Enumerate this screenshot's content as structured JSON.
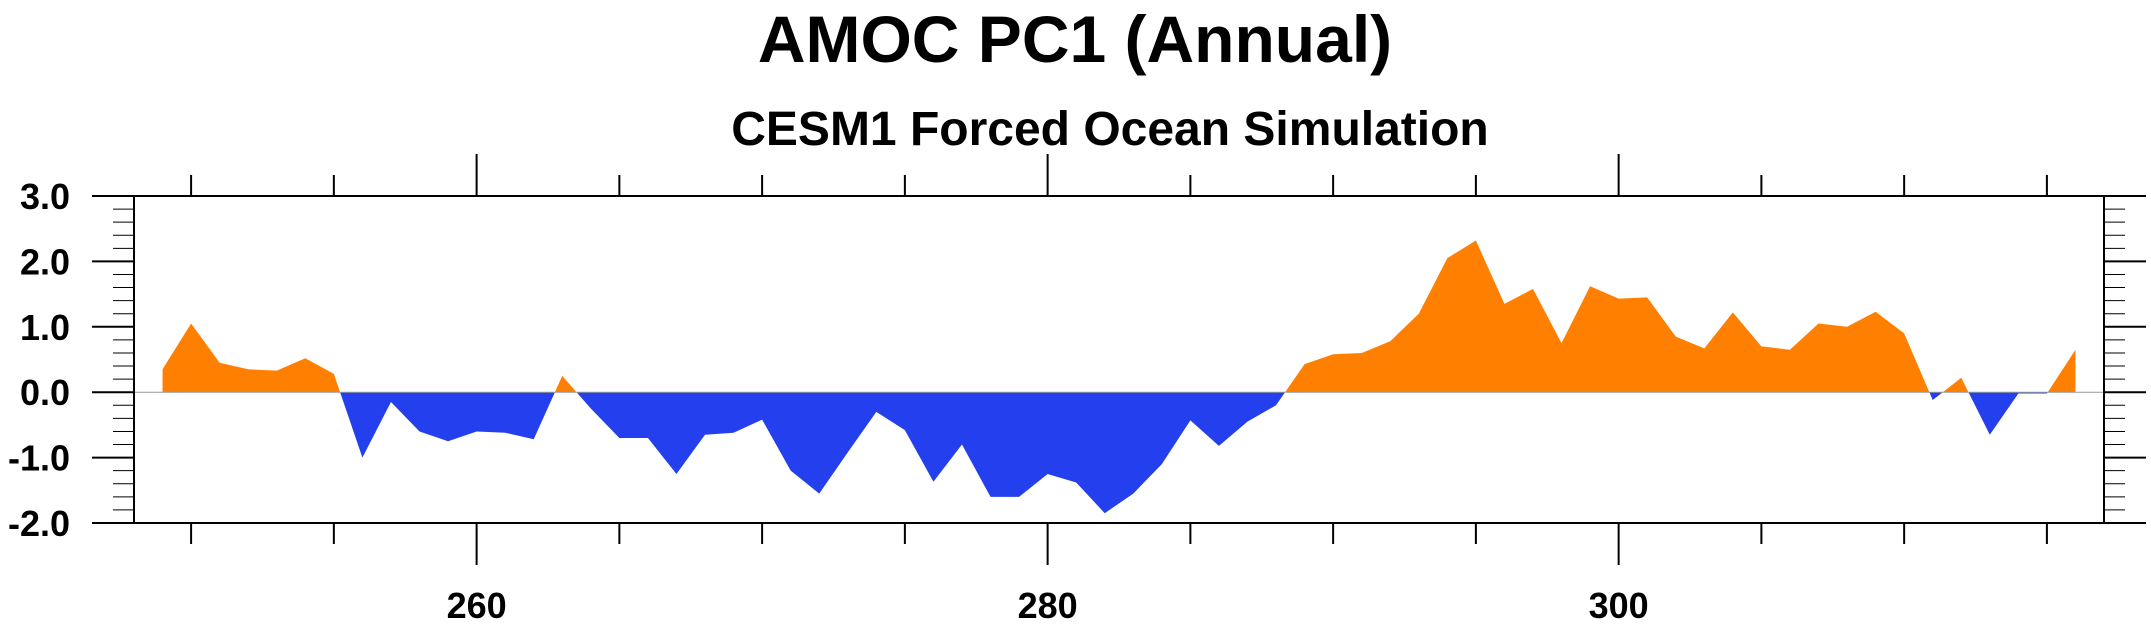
{
  "chart_data": {
    "type": "area",
    "title": "AMOC PC1 (Annual)",
    "subtitle": "CESM1 Forced Ocean Simulation",
    "xlabel": "",
    "ylabel": "",
    "xlim": [
      248,
      317
    ],
    "ylim": [
      -2.0,
      3.0
    ],
    "x_ticks": [
      260,
      280,
      300
    ],
    "y_ticks": [
      3.0,
      2.0,
      1.0,
      0.0,
      -1.0,
      -2.0
    ],
    "y_tick_labels": [
      "3.0",
      "2.0",
      "1.0",
      "0.0",
      "-1.0",
      "-2.0"
    ],
    "x_tick_labels": [
      "260",
      "280",
      "300"
    ],
    "positive_color": "#ff8000",
    "negative_color": "#2440ee",
    "baseline": 0.0,
    "grid": false,
    "x": [
      249,
      250,
      251,
      252,
      253,
      254,
      255,
      256,
      257,
      258,
      259,
      260,
      261,
      262,
      263,
      264,
      265,
      266,
      267,
      268,
      269,
      270,
      271,
      272,
      273,
      274,
      275,
      276,
      277,
      278,
      279,
      280,
      281,
      282,
      283,
      284,
      285,
      286,
      287,
      288,
      289,
      290,
      291,
      292,
      293,
      294,
      295,
      296,
      297,
      298,
      299,
      300,
      301,
      302,
      303,
      304,
      305,
      306,
      307,
      308,
      309,
      310,
      311,
      312,
      313,
      314,
      315,
      316
    ],
    "values": [
      0.35,
      1.05,
      0.45,
      0.35,
      0.33,
      0.52,
      0.28,
      -1.0,
      -0.15,
      -0.6,
      -0.75,
      -0.6,
      -0.62,
      -0.72,
      0.25,
      -0.25,
      -0.7,
      -0.7,
      -1.25,
      -0.65,
      -0.62,
      -0.42,
      -1.2,
      -1.55,
      -0.92,
      -0.3,
      -0.58,
      -1.37,
      -0.8,
      -1.6,
      -1.6,
      -1.25,
      -1.38,
      -1.85,
      -1.55,
      -1.1,
      -0.43,
      -0.82,
      -0.45,
      -0.2,
      0.43,
      0.58,
      0.6,
      0.78,
      1.2,
      2.05,
      2.32,
      1.35,
      1.58,
      0.75,
      1.62,
      1.43,
      1.45,
      0.85,
      0.67,
      1.22,
      0.7,
      0.65,
      1.05,
      1.0,
      1.23,
      0.9,
      -0.12,
      0.22,
      -0.65,
      -0.02,
      -0.02,
      0.65
    ]
  }
}
